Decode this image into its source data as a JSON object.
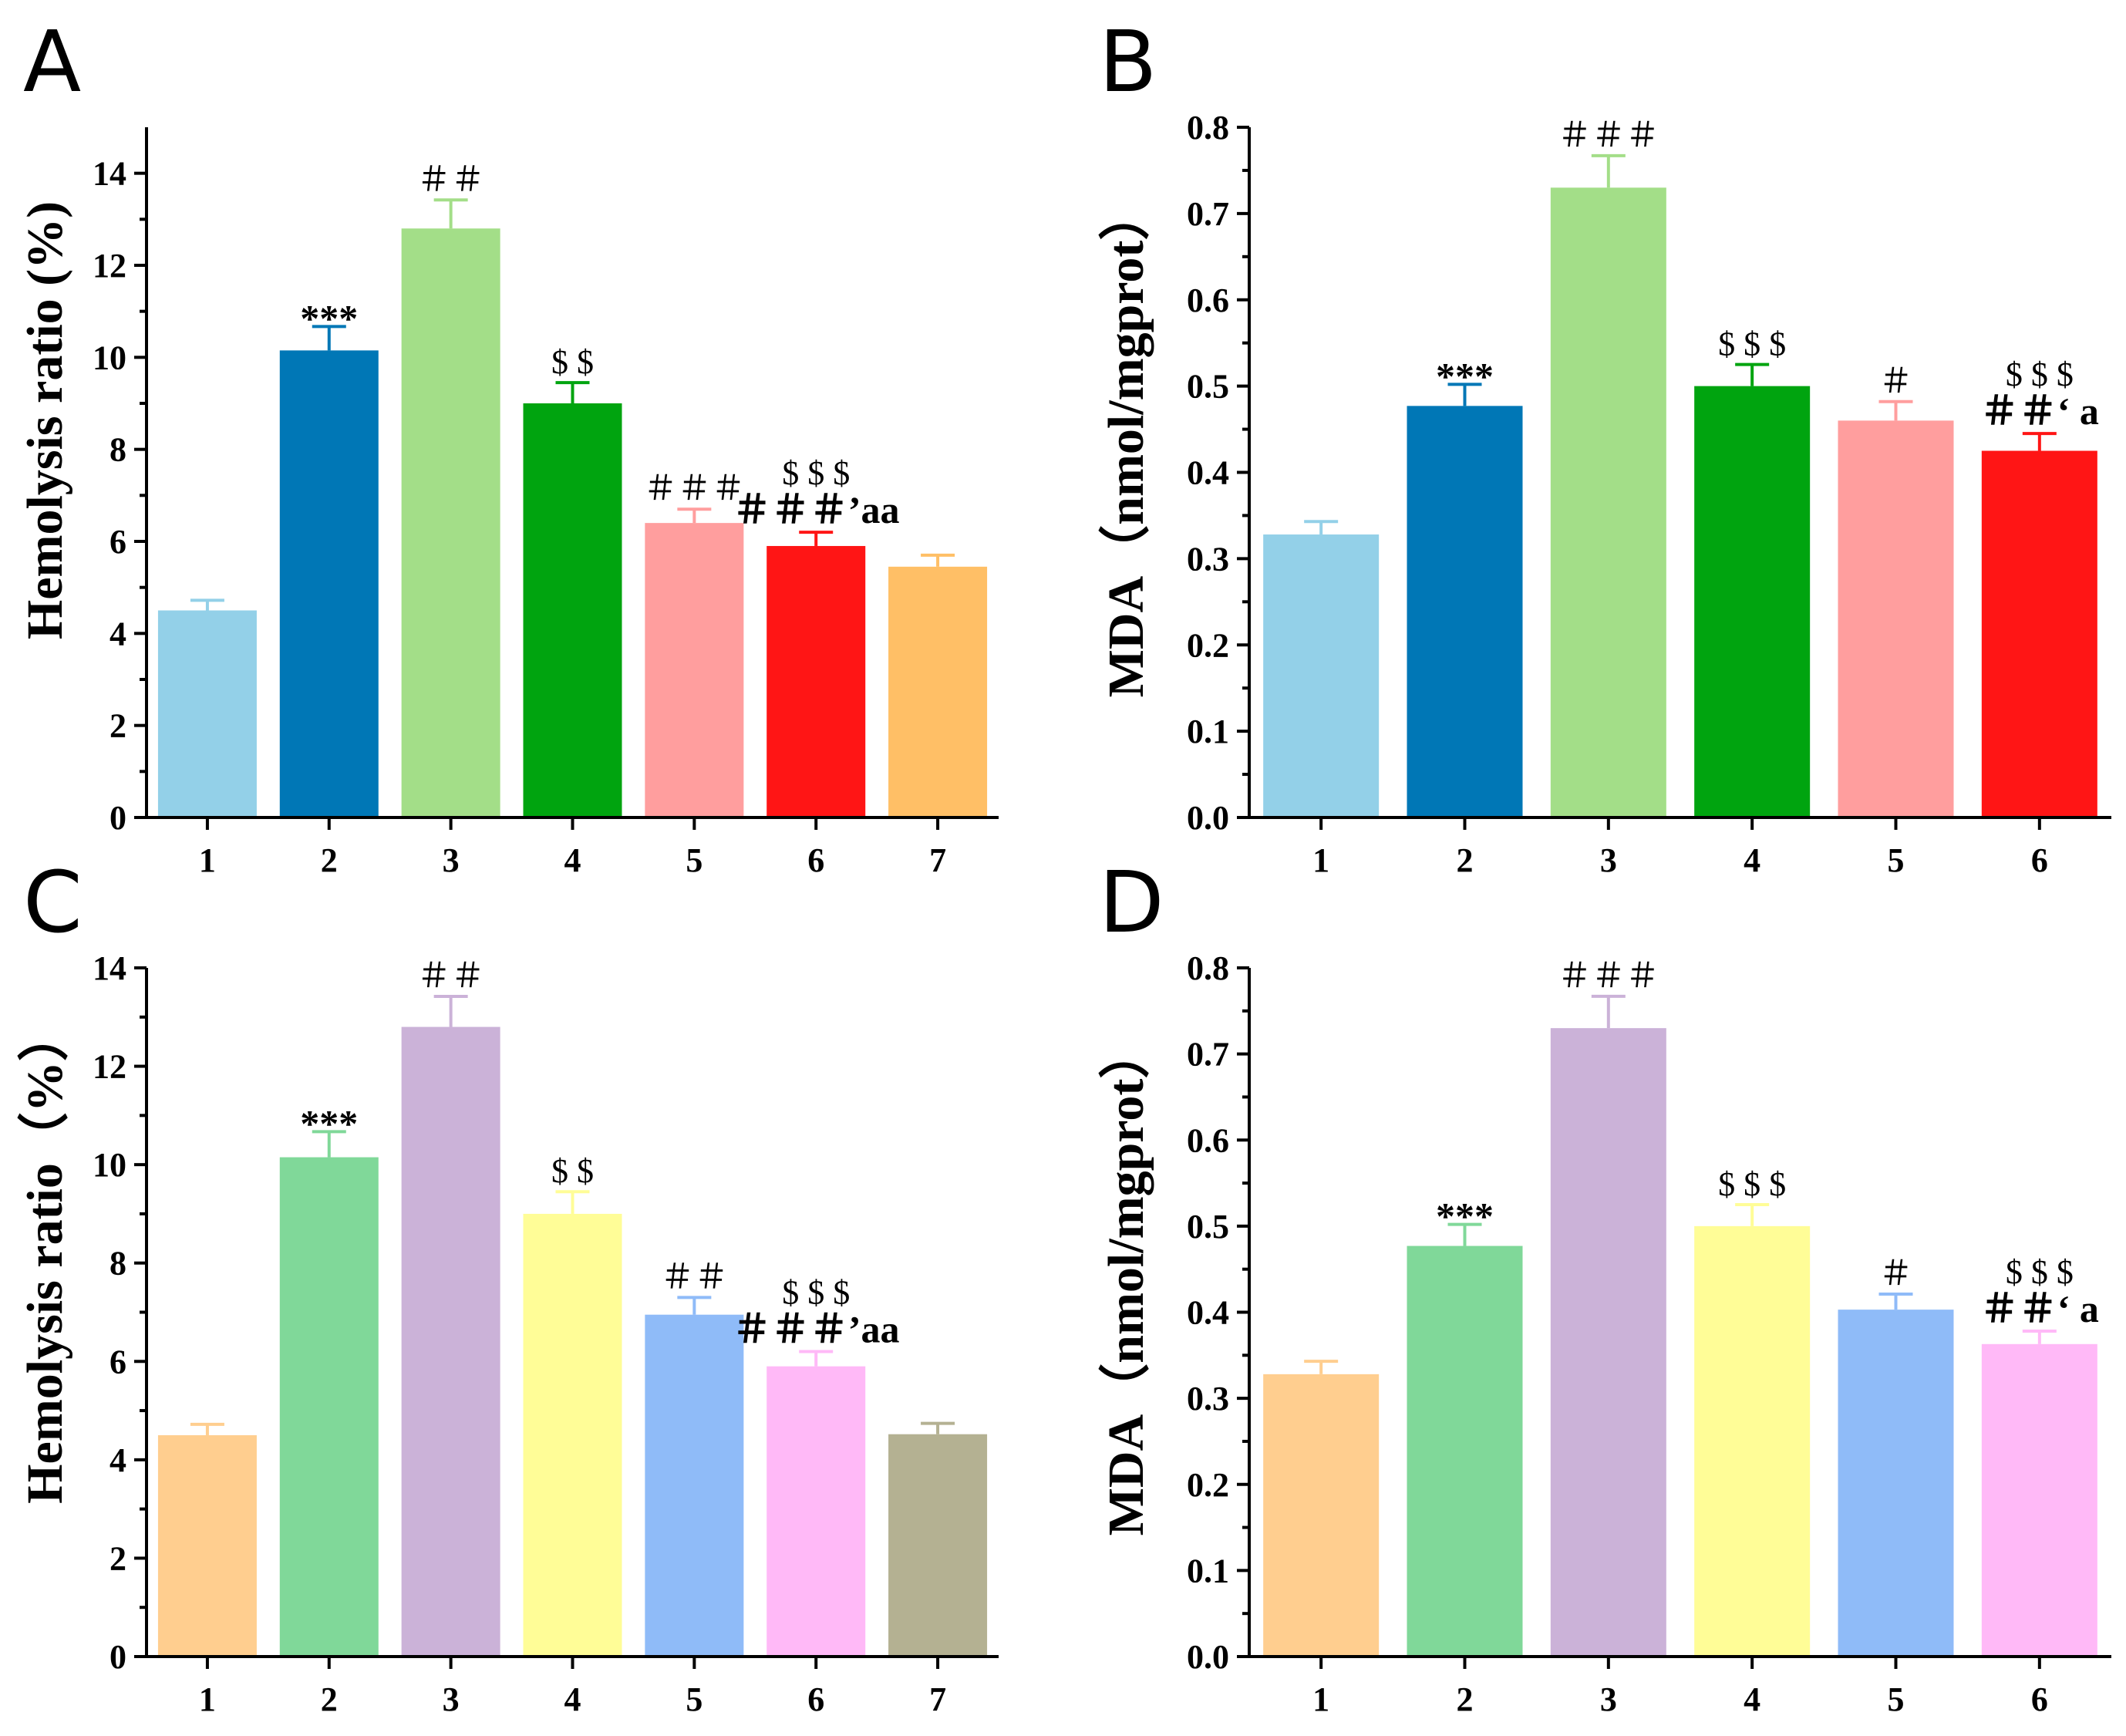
{
  "figure": {
    "colors": {
      "light_blue": "#93D0E8",
      "dark_blue": "#0077B6",
      "light_green": "#A3DE88",
      "green": "#00A40F",
      "pink": "#FF9E9E",
      "red": "#FF1515",
      "orange": "#FFBF66",
      "peach": "#FFCE8F",
      "mint": "#80D899",
      "lavender": "#CBB2D8",
      "light_yellow": "#FFFD97",
      "cornflower": "#8FBBF8",
      "light_magenta": "#FFB9F7",
      "khaki": "#B4B192"
    }
  },
  "chart_data": [
    {
      "panel": "A",
      "type": "bar",
      "ylabel": "Hemolysis ratio (%)",
      "categories": [
        "1",
        "2",
        "3",
        "4",
        "5",
        "6",
        "7"
      ],
      "values": [
        4.5,
        10.15,
        12.8,
        9.0,
        6.4,
        5.9,
        5.45
      ],
      "errors": [
        0.22,
        0.52,
        0.62,
        0.45,
        0.3,
        0.3,
        0.25
      ],
      "colors": [
        "#93D0E8",
        "#0077B6",
        "#A3DE88",
        "#00A40F",
        "#FF9E9E",
        "#FF1515",
        "#FFBF66"
      ],
      "annotations": [
        {
          "bar": 1,
          "lines": [
            "***"
          ]
        },
        {
          "bar": 2,
          "lines": [
            "＃＃"
          ]
        },
        {
          "bar": 3,
          "lines": [
            "$ $"
          ]
        },
        {
          "bar": 4,
          "lines": [
            "＃＃＃"
          ]
        },
        {
          "bar": 5,
          "lines": [
            "$ $ $",
            "＃＃＃’aa"
          ]
        }
      ],
      "ylim": [
        0,
        15
      ],
      "yticks": [
        "0",
        "2",
        "4",
        "6",
        "8",
        "10",
        "12",
        "14"
      ],
      "ytick_values": [
        0,
        2,
        4,
        6,
        8,
        10,
        12,
        14
      ],
      "grid": false
    },
    {
      "panel": "B",
      "type": "bar",
      "ylabel": "MDA（nmol/mgprot）",
      "categories": [
        "1",
        "2",
        "3",
        "4",
        "5",
        "6"
      ],
      "values": [
        0.328,
        0.477,
        0.73,
        0.5,
        0.46,
        0.425
      ],
      "errors": [
        0.015,
        0.025,
        0.037,
        0.025,
        0.022,
        0.02
      ],
      "colors": [
        "#93D0E8",
        "#0077B6",
        "#A3DE88",
        "#00A40F",
        "#FF9E9E",
        "#FF1515"
      ],
      "annotations": [
        {
          "bar": 1,
          "lines": [
            "***"
          ]
        },
        {
          "bar": 2,
          "lines": [
            "＃＃＃"
          ]
        },
        {
          "bar": 3,
          "lines": [
            "$ $ $"
          ]
        },
        {
          "bar": 4,
          "lines": [
            "＃"
          ]
        },
        {
          "bar": 5,
          "lines": [
            "$ $ $",
            "＃＃‘ a"
          ]
        }
      ],
      "ylim": [
        0,
        0.8
      ],
      "yticks": [
        "0.0",
        "0.1",
        "0.2",
        "0.3",
        "0.4",
        "0.5",
        "0.6",
        "0.7",
        "0.8"
      ],
      "ytick_values": [
        0,
        0.1,
        0.2,
        0.3,
        0.4,
        0.5,
        0.6,
        0.7,
        0.8
      ],
      "grid": false
    },
    {
      "panel": "C",
      "type": "bar",
      "ylabel": "Hemolysis ratio（%）",
      "categories": [
        "1",
        "2",
        "3",
        "4",
        "5",
        "6",
        "7"
      ],
      "values": [
        4.5,
        10.15,
        12.8,
        9.0,
        6.95,
        5.9,
        4.52
      ],
      "errors": [
        0.22,
        0.52,
        0.62,
        0.45,
        0.35,
        0.3,
        0.22
      ],
      "colors": [
        "#FFCE8F",
        "#80D899",
        "#CBB2D8",
        "#FFFD97",
        "#8FBBF8",
        "#FFB9F7",
        "#B4B192"
      ],
      "annotations": [
        {
          "bar": 1,
          "lines": [
            "***"
          ]
        },
        {
          "bar": 2,
          "lines": [
            "＃＃"
          ]
        },
        {
          "bar": 3,
          "lines": [
            "$ $"
          ]
        },
        {
          "bar": 4,
          "lines": [
            "＃＃"
          ]
        },
        {
          "bar": 5,
          "lines": [
            "$ $ $",
            "＃＃＃’aa"
          ]
        }
      ],
      "ylim": [
        0,
        14
      ],
      "yticks": [
        "0",
        "2",
        "4",
        "6",
        "8",
        "10",
        "12",
        "14"
      ],
      "ytick_values": [
        0,
        2,
        4,
        6,
        8,
        10,
        12,
        14
      ],
      "grid": false
    },
    {
      "panel": "D",
      "type": "bar",
      "ylabel": "MDA（nmol/mgprot）",
      "categories": [
        "1",
        "2",
        "3",
        "4",
        "5",
        "6"
      ],
      "values": [
        0.328,
        0.477,
        0.73,
        0.5,
        0.403,
        0.363
      ],
      "errors": [
        0.015,
        0.025,
        0.037,
        0.025,
        0.018,
        0.015
      ],
      "colors": [
        "#FFCE8F",
        "#80D899",
        "#CBB2D8",
        "#FFFD97",
        "#8FBBF8",
        "#FFB9F7"
      ],
      "annotations": [
        {
          "bar": 1,
          "lines": [
            "***"
          ]
        },
        {
          "bar": 2,
          "lines": [
            "＃＃＃"
          ]
        },
        {
          "bar": 3,
          "lines": [
            "$ $ $"
          ]
        },
        {
          "bar": 4,
          "lines": [
            "＃"
          ]
        },
        {
          "bar": 5,
          "lines": [
            "$ $ $",
            "＃＃‘ a"
          ]
        }
      ],
      "ylim": [
        0,
        0.8
      ],
      "yticks": [
        "0.0",
        "0.1",
        "0.2",
        "0.3",
        "0.4",
        "0.5",
        "0.6",
        "0.7",
        "0.8"
      ],
      "ytick_values": [
        0,
        0.1,
        0.2,
        0.3,
        0.4,
        0.5,
        0.6,
        0.7,
        0.8
      ],
      "grid": false
    }
  ]
}
